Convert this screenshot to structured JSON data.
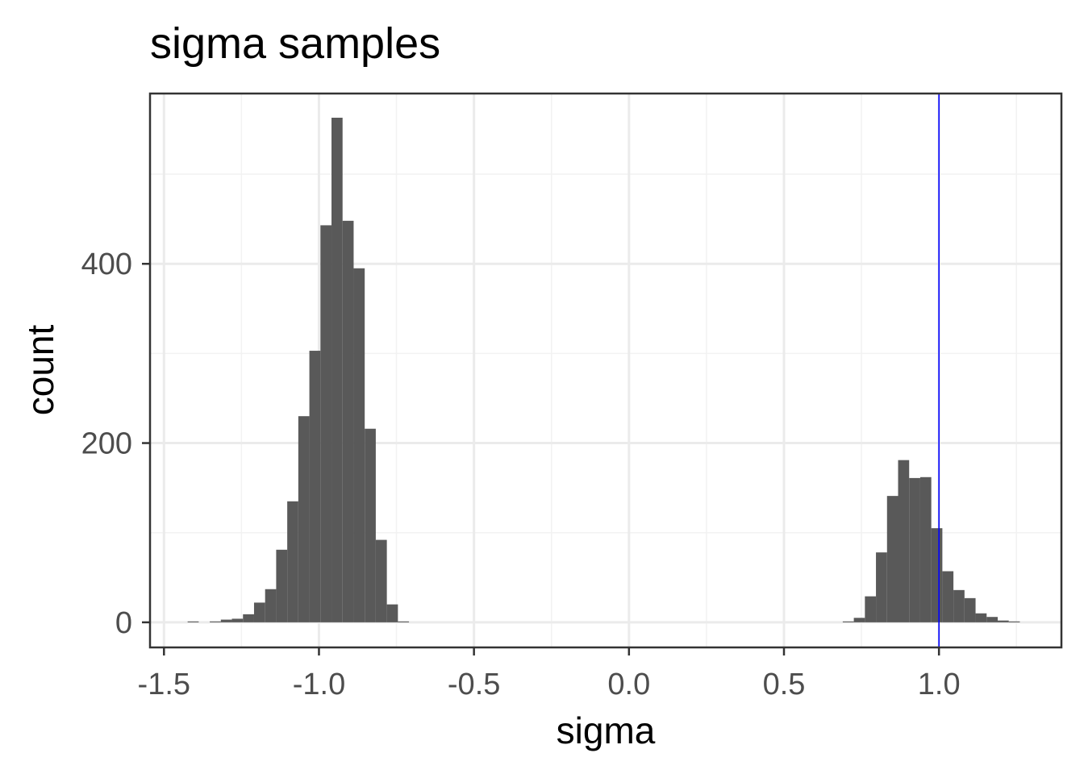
{
  "chart_data": {
    "type": "bar",
    "title": "sigma samples",
    "xlabel": "sigma",
    "ylabel": "count",
    "xlim": [
      -1.545,
      1.395
    ],
    "ylim": [
      -28,
      590
    ],
    "x_ticks": [
      -1.5,
      -1.0,
      -0.5,
      0.0,
      0.5,
      1.0
    ],
    "x_tick_labels": [
      "-1.5",
      "-1.0",
      "-0.5",
      "0.0",
      "0.5",
      "1.0"
    ],
    "y_ticks": [
      0,
      200,
      400
    ],
    "y_tick_labels": [
      "0",
      "200",
      "400"
    ],
    "grid": true,
    "legend": "none",
    "bin_width": 0.0357,
    "bins": [
      {
        "x": -1.4058,
        "count": 1
      },
      {
        "x": -1.3701,
        "count": 0
      },
      {
        "x": -1.3344,
        "count": 1
      },
      {
        "x": -1.2987,
        "count": 3
      },
      {
        "x": -1.263,
        "count": 4
      },
      {
        "x": -1.2273,
        "count": 9
      },
      {
        "x": -1.1916,
        "count": 22
      },
      {
        "x": -1.1559,
        "count": 37
      },
      {
        "x": -1.1202,
        "count": 81
      },
      {
        "x": -1.0845,
        "count": 135
      },
      {
        "x": -1.0488,
        "count": 230
      },
      {
        "x": -1.0131,
        "count": 303
      },
      {
        "x": -0.9774,
        "count": 443
      },
      {
        "x": -0.9417,
        "count": 563
      },
      {
        "x": -0.906,
        "count": 448
      },
      {
        "x": -0.8703,
        "count": 395
      },
      {
        "x": -0.8346,
        "count": 216
      },
      {
        "x": -0.7989,
        "count": 92
      },
      {
        "x": -0.7632,
        "count": 20
      },
      {
        "x": -0.7275,
        "count": 1
      },
      {
        "x": 0.7075,
        "count": 1
      },
      {
        "x": 0.7432,
        "count": 5
      },
      {
        "x": 0.7789,
        "count": 29
      },
      {
        "x": 0.8146,
        "count": 78
      },
      {
        "x": 0.8503,
        "count": 141
      },
      {
        "x": 0.886,
        "count": 181
      },
      {
        "x": 0.9217,
        "count": 161
      },
      {
        "x": 0.9574,
        "count": 162
      },
      {
        "x": 0.9931,
        "count": 105
      },
      {
        "x": 1.0288,
        "count": 57
      },
      {
        "x": 1.0645,
        "count": 36
      },
      {
        "x": 1.1002,
        "count": 27
      },
      {
        "x": 1.1359,
        "count": 10
      },
      {
        "x": 1.1716,
        "count": 6
      },
      {
        "x": 1.2073,
        "count": 2
      },
      {
        "x": 1.243,
        "count": 1
      }
    ],
    "reference_line": {
      "x": 1.0,
      "color": "#0000ff"
    },
    "colors": {
      "bar": "#595959",
      "panel_border": "#333333",
      "grid_major": "#ebebeb",
      "grid_minor": "#f2f2f2",
      "tick_label": "#4d4d4d"
    }
  }
}
